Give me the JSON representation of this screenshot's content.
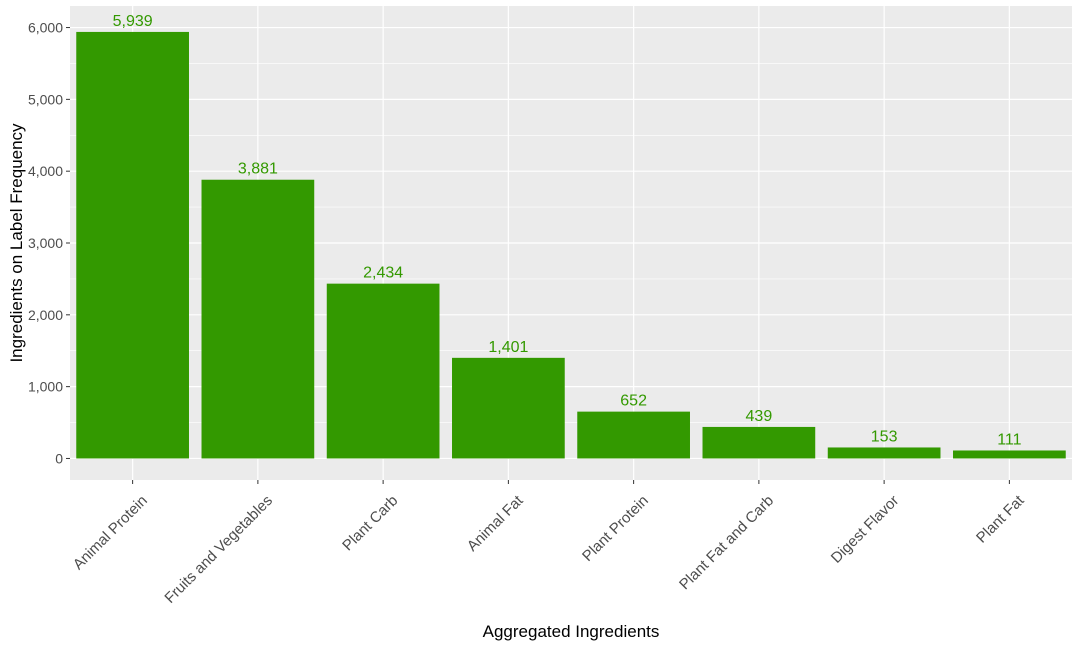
{
  "chart_data": {
    "type": "bar",
    "xlabel": "Aggregated Ingredients",
    "ylabel": "Ingredients on Label Frequency",
    "categories": [
      "Animal Protein",
      "Fruits and Vegetables",
      "Plant Carb",
      "Animal Fat",
      "Plant Protein",
      "Plant Fat and Carb",
      "Digest Flavor",
      "Plant Fat"
    ],
    "values": [
      5939,
      3881,
      2434,
      1401,
      652,
      439,
      153,
      111
    ],
    "data_labels": [
      "5,939",
      "3,881",
      "2,434",
      "1,401",
      "652",
      "439",
      "153",
      "111"
    ],
    "ylim": [
      -300,
      6300
    ],
    "yticks": [
      0,
      1000,
      2000,
      3000,
      4000,
      5000,
      6000
    ],
    "ytick_labels": [
      "0",
      "1,000",
      "2,000",
      "3,000",
      "4,000",
      "5,000",
      "6,000"
    ],
    "grid": true,
    "legend": "none",
    "colors": {
      "bar": "#339900",
      "data_label": "#339900",
      "panel": "#ebebeb",
      "grid": "#ffffff"
    }
  }
}
